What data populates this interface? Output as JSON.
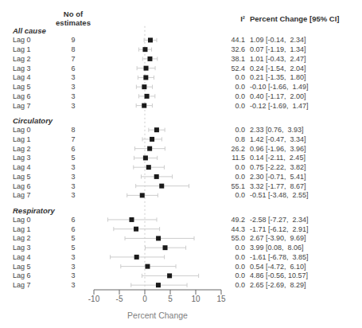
{
  "chart_data": {
    "type": "forest",
    "xlabel": "Percent Change",
    "xlim": [
      -10,
      15
    ],
    "xticks": [
      -10,
      -5,
      0,
      5,
      10,
      15
    ],
    "reference_x": 0,
    "color": "#1a1a1a",
    "column_headers": {
      "n": "No of\nestimates",
      "i2": "I²",
      "ci": "Percent Change [95% CI]"
    },
    "sections": [
      {
        "title": "All cause",
        "rows": [
          {
            "label": "Lag 0",
            "n": 9,
            "i2": "44.1",
            "est": 1.09,
            "lo": -0.14,
            "hi": 2.34,
            "ci_str": "1.09 [-0.14,  2.34]"
          },
          {
            "label": "Lag 1",
            "n": 8,
            "i2": "32.6",
            "est": 0.07,
            "lo": -1.19,
            "hi": 1.34,
            "ci_str": "0.07 [-1.19,  1.34]"
          },
          {
            "label": "Lag 2",
            "n": 7,
            "i2": "38.1",
            "est": 1.01,
            "lo": -0.43,
            "hi": 2.47,
            "ci_str": "1.01 [-0.43,  2.47]"
          },
          {
            "label": "Lag 3",
            "n": 6,
            "i2": "52.4",
            "est": 0.24,
            "lo": -1.54,
            "hi": 2.04,
            "ci_str": "0.24 [-1.54,  2.04]"
          },
          {
            "label": "Lag 4",
            "n": 3,
            "i2": "0.0",
            "est": 0.21,
            "lo": -1.35,
            "hi": 1.8,
            "ci_str": "0.21 [-1.35,  1.80]"
          },
          {
            "label": "Lag 5",
            "n": 3,
            "i2": "0.0",
            "est": -0.1,
            "lo": -1.66,
            "hi": 1.49,
            "ci_str": "-0.10 [-1.66,  1.49]"
          },
          {
            "label": "Lag 6",
            "n": 3,
            "i2": "0.0",
            "est": 0.4,
            "lo": -1.17,
            "hi": 2.0,
            "ci_str": "0.40 [-1.17,  2.00]"
          },
          {
            "label": "Lag 7",
            "n": 3,
            "i2": "0.0",
            "est": -0.12,
            "lo": -1.69,
            "hi": 1.47,
            "ci_str": "-0.12 [-1.69,  1.47]"
          }
        ]
      },
      {
        "title": "Circulatory",
        "rows": [
          {
            "label": "Lag 0",
            "n": 8,
            "i2": "0.0",
            "est": 2.33,
            "lo": 0.76,
            "hi": 3.93,
            "ci_str": "2.33 [0.76,  3.93]"
          },
          {
            "label": "Lag 1",
            "n": 7,
            "i2": "0.8",
            "est": 1.42,
            "lo": -0.47,
            "hi": 3.34,
            "ci_str": "1.42 [-0.47,  3.34]"
          },
          {
            "label": "Lag 2",
            "n": 6,
            "i2": "26.2",
            "est": 0.96,
            "lo": -1.96,
            "hi": 3.96,
            "ci_str": "0.96 [-1.96,  3.96]"
          },
          {
            "label": "Lag 3",
            "n": 5,
            "i2": "11.5",
            "est": 0.14,
            "lo": -2.11,
            "hi": 2.45,
            "ci_str": "0.14 [-2.11,  2.45]"
          },
          {
            "label": "Lag 4",
            "n": 3,
            "i2": "0.0",
            "est": 0.75,
            "lo": -2.22,
            "hi": 3.82,
            "ci_str": "0.75 [-2.22,  3.82]"
          },
          {
            "label": "Lag 5",
            "n": 3,
            "i2": "0.0",
            "est": 2.3,
            "lo": -0.71,
            "hi": 5.41,
            "ci_str": "2.30 [-0.71,  5.41]"
          },
          {
            "label": "Lag 6",
            "n": 3,
            "i2": "55.1",
            "est": 3.32,
            "lo": -1.77,
            "hi": 8.67,
            "ci_str": "3.32 [-1.77,  8.67]"
          },
          {
            "label": "Lag 7",
            "n": 3,
            "i2": "0.0",
            "est": -0.51,
            "lo": -3.48,
            "hi": 2.55,
            "ci_str": "-0.51 [-3.48,  2.55]"
          }
        ]
      },
      {
        "title": "Respiratory",
        "rows": [
          {
            "label": "Lag 0",
            "n": 6,
            "i2": "49.2",
            "est": -2.58,
            "lo": -7.27,
            "hi": 2.34,
            "ci_str": "-2.58 [-7.27,  2.34]"
          },
          {
            "label": "Lag 1",
            "n": 6,
            "i2": "44.3",
            "est": -1.71,
            "lo": -6.12,
            "hi": 2.91,
            "ci_str": "-1.71 [-6.12,  2.91]"
          },
          {
            "label": "Lag 2",
            "n": 5,
            "i2": "55.0",
            "est": 2.67,
            "lo": -3.9,
            "hi": 9.69,
            "ci_str": "2.67 [-3.90,  9.69]"
          },
          {
            "label": "Lag 3",
            "n": 5,
            "i2": "0.0",
            "est": 3.99,
            "lo": 0.08,
            "hi": 8.06,
            "ci_str": "3.99 [0.08,  8.06]"
          },
          {
            "label": "Lag 4",
            "n": 3,
            "i2": "0.0",
            "est": -1.61,
            "lo": -6.78,
            "hi": 3.85,
            "ci_str": "-1.61 [-6.78,  3.85]"
          },
          {
            "label": "Lag 5",
            "n": 3,
            "i2": "0.0",
            "est": 0.54,
            "lo": -4.72,
            "hi": 6.1,
            "ci_str": "0.54 [-4.72,  6.10]"
          },
          {
            "label": "Lag 6",
            "n": 3,
            "i2": "0.0",
            "est": 4.86,
            "lo": -0.56,
            "hi": 10.57,
            "ci_str": "4.86 [-0.56, 10.57]"
          },
          {
            "label": "Lag 7",
            "n": 3,
            "i2": "0.0",
            "est": 2.65,
            "lo": -2.69,
            "hi": 8.29,
            "ci_str": "2.65 [-2.69,  8.29]"
          }
        ]
      }
    ]
  }
}
